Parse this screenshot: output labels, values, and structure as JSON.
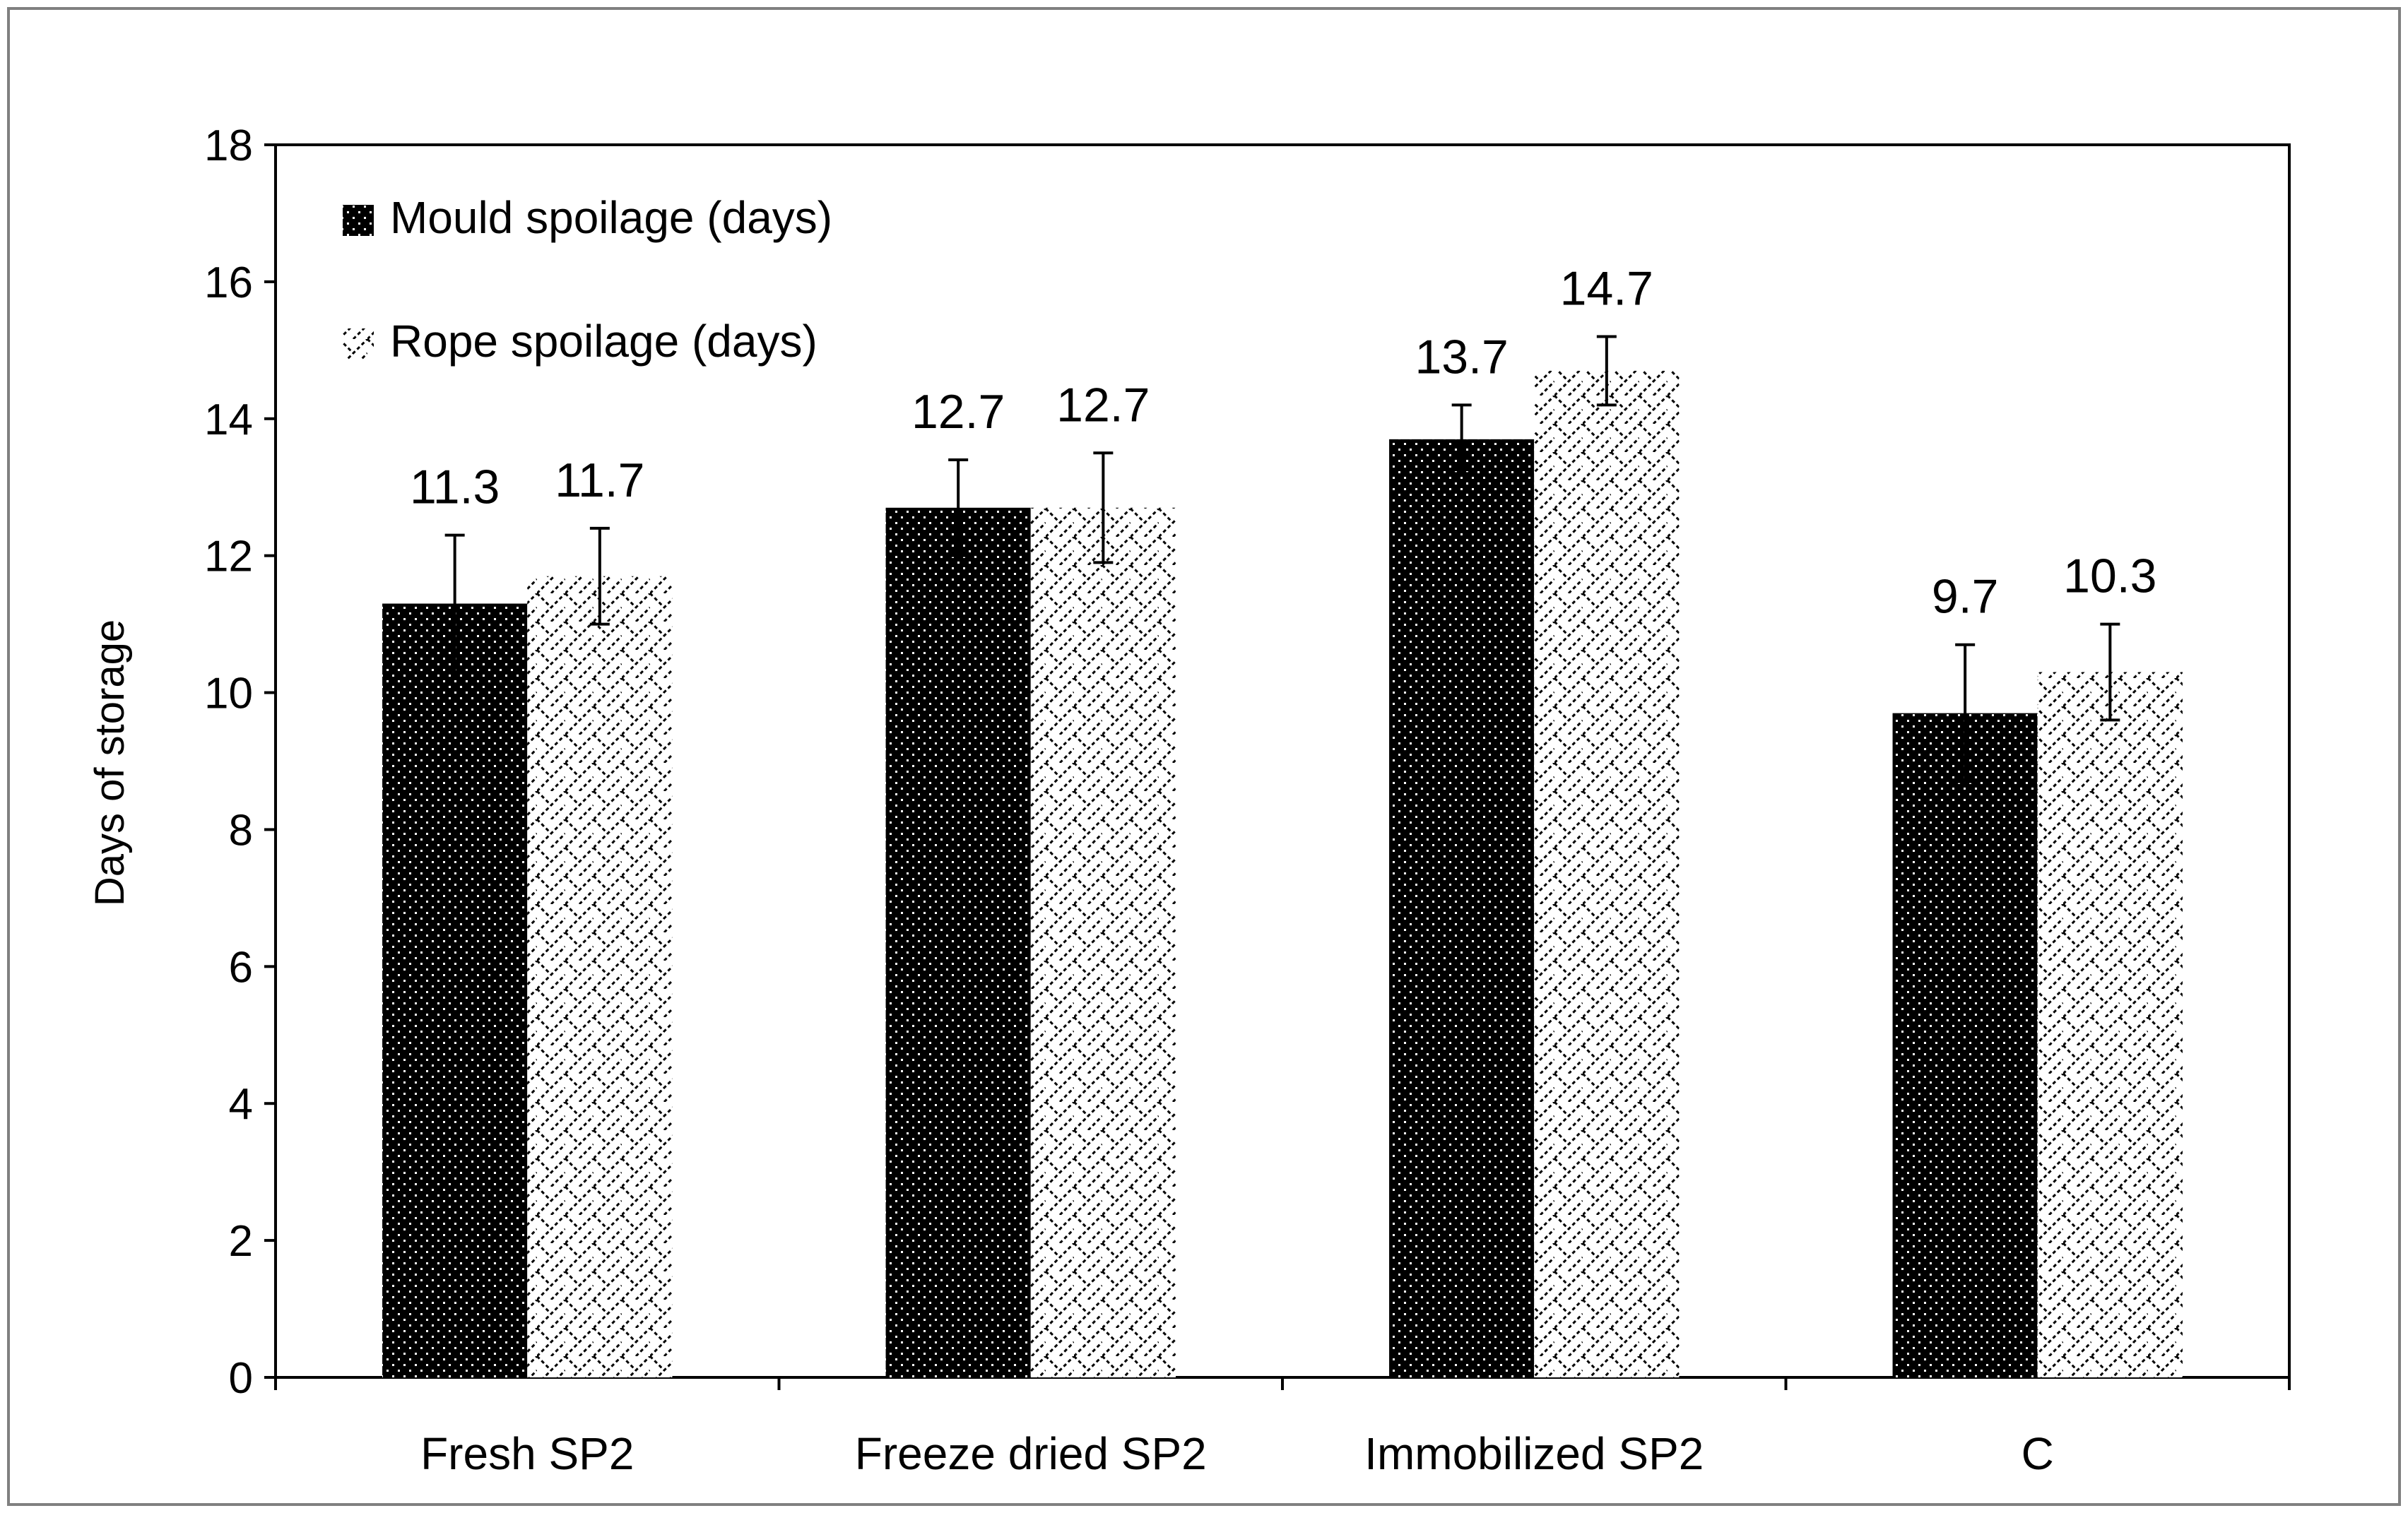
{
  "chart_data": {
    "type": "bar",
    "title": "",
    "xlabel": "",
    "ylabel": "Days of storage",
    "ylim": [
      0,
      18
    ],
    "yticks": [
      0,
      2,
      4,
      6,
      8,
      10,
      12,
      14,
      16,
      18
    ],
    "grid": false,
    "legend_position": "top-left",
    "categories": [
      "Fresh SP2",
      "Freeze dried SP2",
      "Immobilized SP2",
      "C"
    ],
    "series": [
      {
        "name": "Mould spoilage (days)",
        "pattern": "dots",
        "values": [
          11.3,
          12.7,
          13.7,
          9.7
        ],
        "labels": [
          "11.3",
          "12.7",
          "13.7",
          "9.7"
        ],
        "errors": [
          1.0,
          0.7,
          0.5,
          1.0
        ]
      },
      {
        "name": "Rope spoilage (days)",
        "pattern": "zigzag",
        "values": [
          11.7,
          12.7,
          14.7,
          10.3
        ],
        "labels": [
          "11.7",
          "12.7",
          "14.7",
          "10.3"
        ],
        "errors": [
          0.7,
          0.8,
          0.5,
          0.7
        ]
      }
    ],
    "colors": {
      "bar_dark": "#000000",
      "bar_light": "#ffffff",
      "axis": "#000000",
      "frame": "#808080"
    }
  }
}
